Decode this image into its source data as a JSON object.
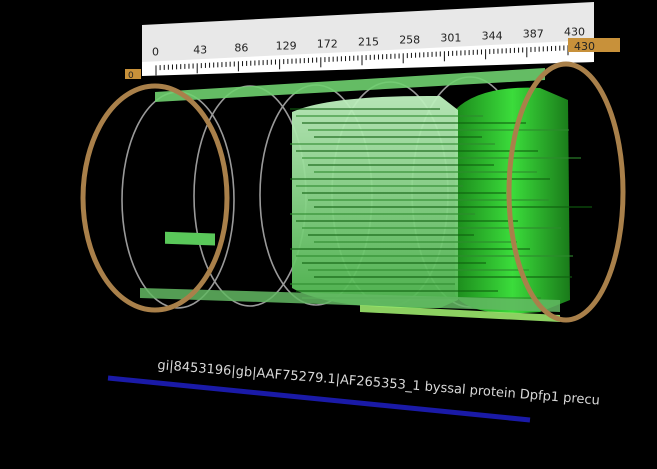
{
  "ruler": {
    "ticks": [
      "0",
      "43",
      "86",
      "129",
      "172",
      "215",
      "258",
      "301",
      "344",
      "387",
      "430"
    ],
    "end_label": "430",
    "start_marker": "0"
  },
  "sequence": {
    "title": "gi|8453196|gb|AAF75279.1|AF265353_1 byssal protein Dpfp1 precu"
  },
  "colors": {
    "background": "#000000",
    "ruler_bg": "#e6e6e6",
    "ring_end": "#a9804a",
    "ring_mid": "#9a9a9a",
    "hit_bright": "#3ad43a",
    "hit_light": "#9fe39f",
    "query_bar": "#1a1aa8",
    "ruler_tab": "#c8913a"
  },
  "hits_view": {
    "type": "3d-cylinder-alignment",
    "rings": 6
  }
}
